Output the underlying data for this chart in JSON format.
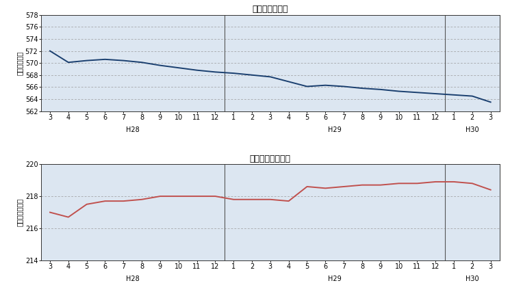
{
  "title1": "推計人口の推移",
  "title2": "推計世帯数の推移",
  "ylabel1": "（人口・千）",
  "ylabel2": "（世帯数・千）",
  "x_labels": [
    "3",
    "4",
    "5",
    "6",
    "7",
    "8",
    "9",
    "10",
    "11",
    "12",
    "1",
    "2",
    "3",
    "4",
    "5",
    "6",
    "7",
    "8",
    "9",
    "10",
    "11",
    "12",
    "1",
    "2",
    "3"
  ],
  "pop_values": [
    572.0,
    570.1,
    570.4,
    570.6,
    570.4,
    570.1,
    569.6,
    569.2,
    568.8,
    568.5,
    568.3,
    568.0,
    567.7,
    566.9,
    566.1,
    566.3,
    566.1,
    565.8,
    565.6,
    565.3,
    565.1,
    564.9,
    564.7,
    564.5,
    563.5
  ],
  "hh_values": [
    217.0,
    216.7,
    217.5,
    217.7,
    217.7,
    217.8,
    218.0,
    218.0,
    218.0,
    218.0,
    217.8,
    217.8,
    217.8,
    217.7,
    218.6,
    218.5,
    218.6,
    218.7,
    218.7,
    218.8,
    218.8,
    218.9,
    218.9,
    218.8,
    218.4
  ],
  "pop_ylim": [
    562,
    578
  ],
  "pop_yticks": [
    562,
    564,
    566,
    568,
    570,
    572,
    574,
    576,
    578
  ],
  "hh_ylim": [
    214,
    220
  ],
  "hh_yticks": [
    214,
    216,
    218,
    220
  ],
  "line_color1": "#1a3f6f",
  "line_color2": "#c0504d",
  "plot_bg": "#dce6f1",
  "grid_color": "#999999",
  "era_line_color": "#555555",
  "era_sep1": 9.5,
  "era_sep2": 21.5,
  "era_labels": [
    [
      4.5,
      "H28"
    ],
    [
      15.5,
      "H29"
    ],
    [
      23.0,
      "H30"
    ]
  ]
}
